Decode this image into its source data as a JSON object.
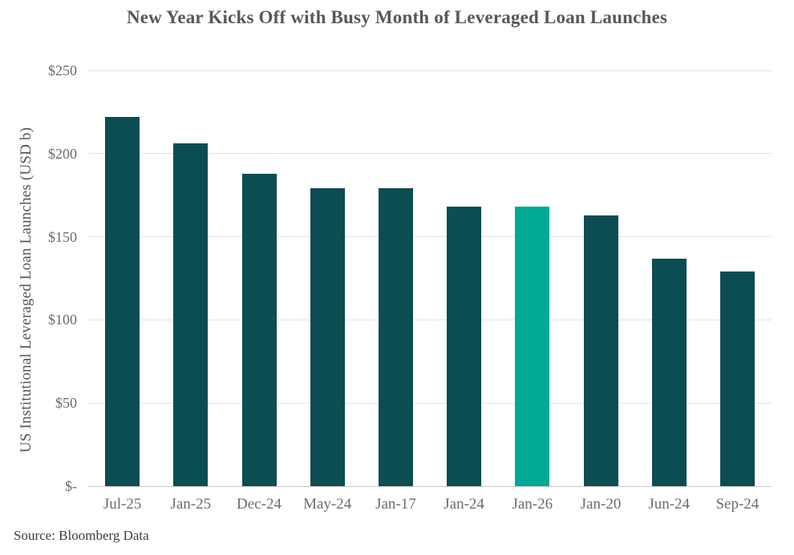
{
  "title": "New Year Kicks Off with Busy Month of Leveraged Loan Launches",
  "source": "Source: Bloomberg Data",
  "chart_data": {
    "type": "bar",
    "title": "New Year Kicks Off with Busy Month of Leveraged Loan Launches",
    "xlabel": "",
    "ylabel": "US Institutional Leveraged Loan Launches (USD b)",
    "categories": [
      "Jul-25",
      "Jan-25",
      "Dec-24",
      "May-24",
      "Jan-17",
      "Jan-24",
      "Jan-26",
      "Jan-20",
      "Jun-24",
      "Sep-24"
    ],
    "values": [
      222,
      206,
      188,
      179,
      179,
      168,
      168,
      163,
      137,
      129
    ],
    "highlight_category": "Jan-26",
    "highlight_index": 6,
    "ylim": [
      0,
      250
    ],
    "yticks": [
      0,
      50,
      100,
      150,
      200,
      250
    ],
    "ytick_labels": [
      "$-",
      "$50",
      "$100",
      "$150",
      "$200",
      "$250"
    ],
    "grid": "horizontal",
    "legend": "none",
    "colors": {
      "bar": "#0c4c53",
      "highlight": "#00aa97",
      "gridline": "#e4e4e4",
      "axis_line": "#c7c7c7",
      "title_text": "#58585a",
      "tick_text": "#6b6b6b",
      "source_text": "#3d3d3d",
      "background": "#ffffff"
    }
  }
}
